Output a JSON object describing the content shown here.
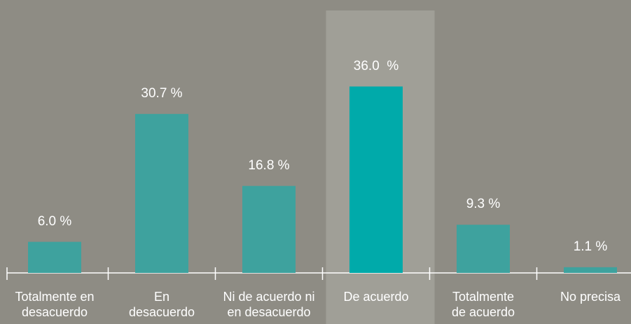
{
  "chart_data": {
    "type": "bar",
    "categories": [
      "Totalmente en\ndesacuerdo",
      "En\ndesacuerdo",
      "Ni de acuerdo ni\nen desacuerdo",
      "De acuerdo",
      "Totalmente\nde acuerdo",
      "No precisa"
    ],
    "values": [
      6.0,
      30.7,
      16.8,
      36.0,
      9.3,
      1.1
    ],
    "value_labels": [
      "6.0 %",
      "30.7 %",
      "16.8 %",
      "36.0  %",
      "9.3 %",
      "1.1 %"
    ],
    "color": "#3ea29e",
    "highlight_color": "#00aaaa",
    "highlight_index": 3
  }
}
